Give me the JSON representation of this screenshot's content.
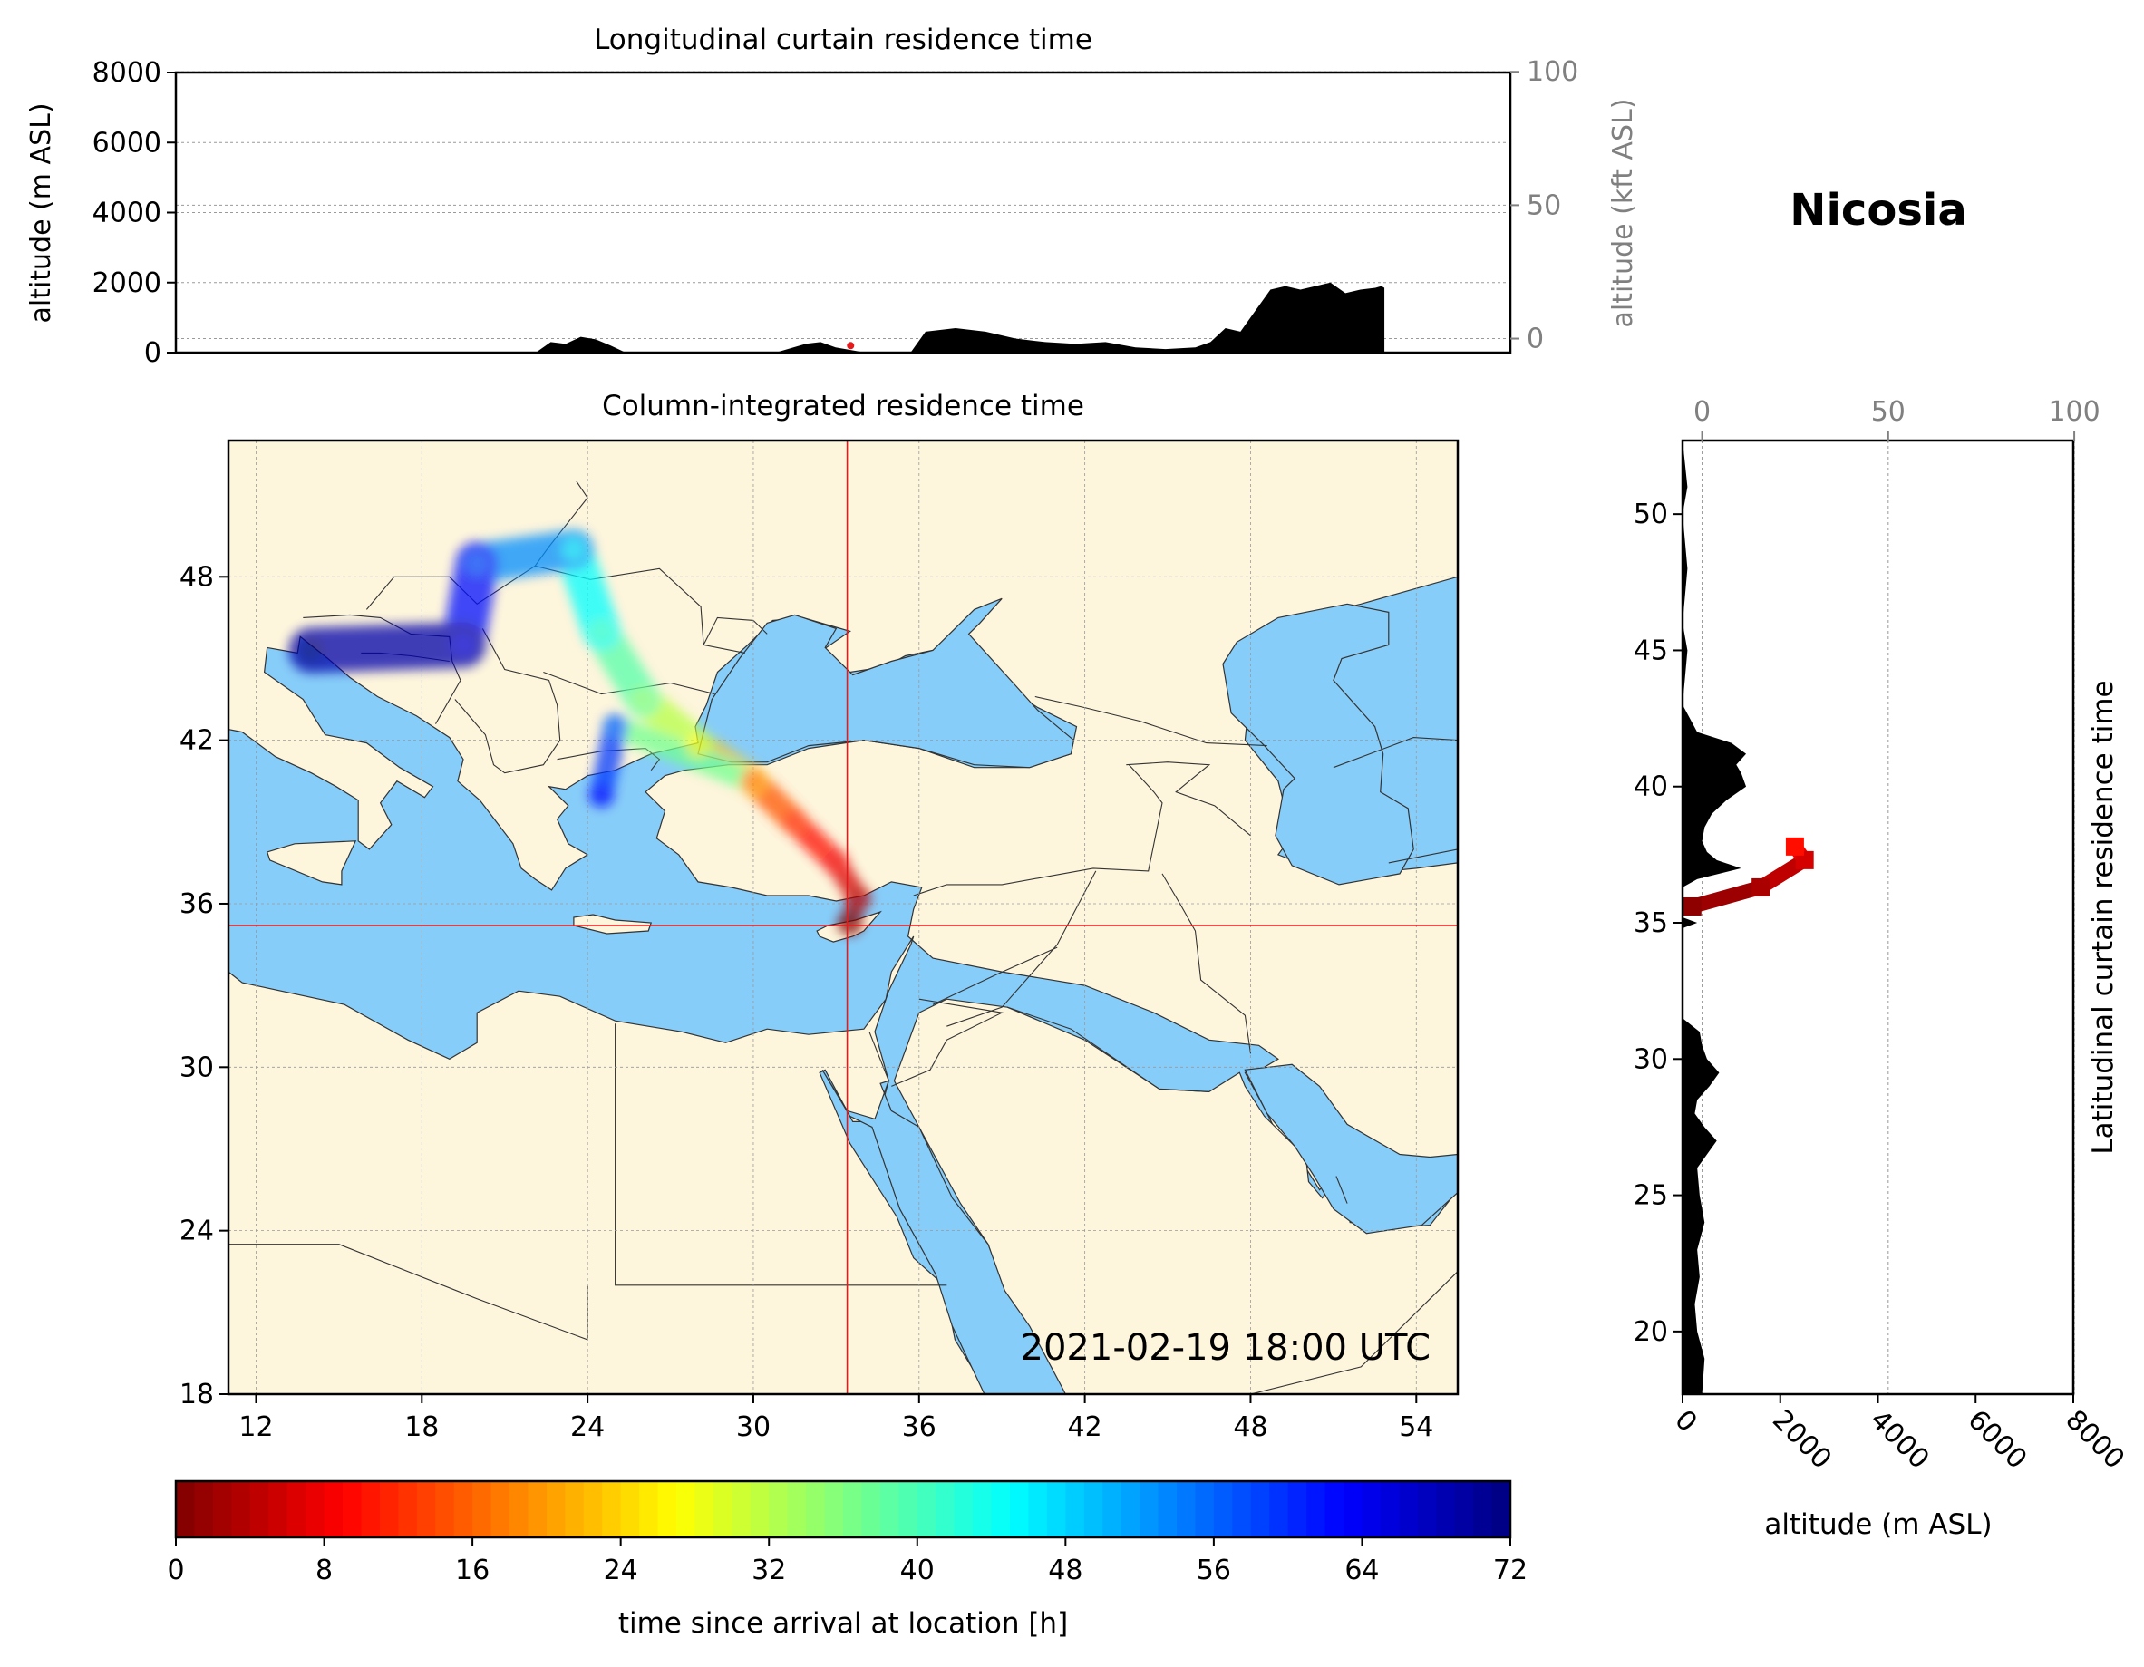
{
  "station": "Nicosia",
  "timestamp": "2021-02-19 18:00 UTC",
  "colors": {
    "land": "#fdf5dc",
    "sea": "#87cdf9",
    "crosshair": "#e41a1c",
    "terrain": "#000000",
    "secondary_axis": "#808080"
  },
  "chart_data": [
    {
      "type": "area",
      "title": "Longitudinal curtain residence time",
      "ylabel": "altitude (m ASL)",
      "ylabel_right": "altitude (kft ASL)",
      "ylim": [
        0,
        8000
      ],
      "yticks": [
        "0",
        "2000",
        "4000",
        "6000",
        "8000"
      ],
      "yticks_right": [
        "0",
        "50",
        "100"
      ],
      "xlim": [
        11,
        55.5
      ],
      "grid": "horizontal dotted",
      "terrain": {
        "x": [
          11,
          20,
          23,
          23.5,
          24,
          24.5,
          25,
          25.5,
          26,
          26.5,
          31,
          32,
          32.5,
          33,
          34,
          35,
          35.5,
          36,
          37,
          38,
          39,
          40,
          41,
          42,
          43,
          44,
          45,
          45.5,
          46,
          46.5,
          47,
          47.5,
          48,
          48.5,
          49,
          49.5,
          50,
          50.5,
          51,
          51.2,
          51.3
        ],
        "altitude_m": [
          0,
          0,
          0,
          300,
          250,
          450,
          380,
          200,
          0,
          0,
          0,
          250,
          300,
          150,
          0,
          0,
          0,
          600,
          700,
          600,
          400,
          300,
          250,
          300,
          150,
          100,
          150,
          300,
          700,
          600,
          1200,
          1800,
          1900,
          1800,
          1900,
          2000,
          1700,
          1800,
          1850,
          1900,
          1850
        ]
      },
      "trajectories": [
        {
          "x": 33.5,
          "altitude_m": 200
        }
      ]
    },
    {
      "type": "heatmap",
      "title": "Column-integrated residence time",
      "xlim": [
        11,
        55.5
      ],
      "ylim": [
        18,
        53
      ],
      "xticks": [
        "12",
        "18",
        "24",
        "30",
        "36",
        "42",
        "48",
        "54"
      ],
      "yticks": [
        "18",
        "24",
        "30",
        "36",
        "42",
        "48"
      ],
      "crosshair": {
        "lon": 33.4,
        "lat": 35.2
      },
      "plume": [
        {
          "lon": 33.5,
          "lat": 35.3,
          "hours": 0
        },
        {
          "lon": 33.8,
          "lat": 36.2,
          "hours": 4
        },
        {
          "lon": 33.0,
          "lat": 37.5,
          "hours": 8
        },
        {
          "lon": 31.5,
          "lat": 39.0,
          "hours": 12
        },
        {
          "lon": 30.0,
          "lat": 40.5,
          "hours": 18
        },
        {
          "lon": 28.0,
          "lat": 41.8,
          "hours": 28
        },
        {
          "lon": 26.0,
          "lat": 43.5,
          "hours": 36
        },
        {
          "lon": 24.5,
          "lat": 46.0,
          "hours": 42
        },
        {
          "lon": 23.5,
          "lat": 49.0,
          "hours": 48
        },
        {
          "lon": 20.0,
          "lat": 48.5,
          "hours": 58
        },
        {
          "lon": 19.5,
          "lat": 45.5,
          "hours": 66
        },
        {
          "lon": 14.0,
          "lat": 45.3,
          "hours": 72
        },
        {
          "lon": 24.5,
          "lat": 40.0,
          "hours": 62
        },
        {
          "lon": 25.0,
          "lat": 42.5,
          "hours": 56
        }
      ]
    },
    {
      "type": "area",
      "title": "Latitudinal curtain residence time",
      "xlabel": "altitude (m ASL)",
      "xlim": [
        0,
        8000
      ],
      "xticks": [
        "0",
        "2000",
        "4000",
        "6000",
        "8000"
      ],
      "xticks_top": [
        "0",
        "50",
        "100"
      ],
      "ylim": [
        17.7,
        52.7
      ],
      "yticks": [
        "20",
        "25",
        "30",
        "35",
        "40",
        "45",
        "50"
      ],
      "grid": "vertical dotted",
      "terrain": {
        "lat": [
          17.7,
          19,
          20,
          21,
          22,
          23,
          24,
          25,
          26,
          26.5,
          27,
          27.5,
          28,
          28.5,
          29,
          29.5,
          30,
          30.5,
          31,
          31.5,
          33,
          34.8,
          35,
          35.2,
          35.5,
          35.8,
          36.3,
          36.6,
          37,
          37.3,
          37.6,
          38,
          38.5,
          39,
          39.5,
          40,
          40.5,
          40.8,
          41.2,
          41.6,
          42,
          43,
          45,
          46,
          48,
          50,
          51,
          52.7
        ],
        "altitude_m": [
          400,
          450,
          300,
          250,
          350,
          300,
          450,
          350,
          300,
          500,
          700,
          450,
          250,
          300,
          550,
          750,
          500,
          400,
          350,
          0,
          0,
          0,
          300,
          0,
          0,
          0,
          0,
          300,
          1200,
          700,
          500,
          400,
          450,
          600,
          900,
          1300,
          1200,
          1100,
          1300,
          1000,
          300,
          0,
          100,
          0,
          100,
          0,
          100,
          0
        ]
      },
      "trajectories": [
        {
          "lat": 35.6,
          "altitude_m": 200,
          "hours": 1
        },
        {
          "lat": 36.3,
          "altitude_m": 1600,
          "hours": 3
        },
        {
          "lat": 37.3,
          "altitude_m": 2500,
          "hours": 6
        },
        {
          "lat": 37.8,
          "altitude_m": 2300,
          "hours": 10
        }
      ]
    },
    {
      "type": "colorbar",
      "label": "time since arrival at location [h]",
      "range": [
        0,
        72
      ],
      "ticks": [
        "0",
        "8",
        "16",
        "24",
        "32",
        "40",
        "48",
        "56",
        "64",
        "72"
      ],
      "colormap": "jet_r"
    }
  ]
}
